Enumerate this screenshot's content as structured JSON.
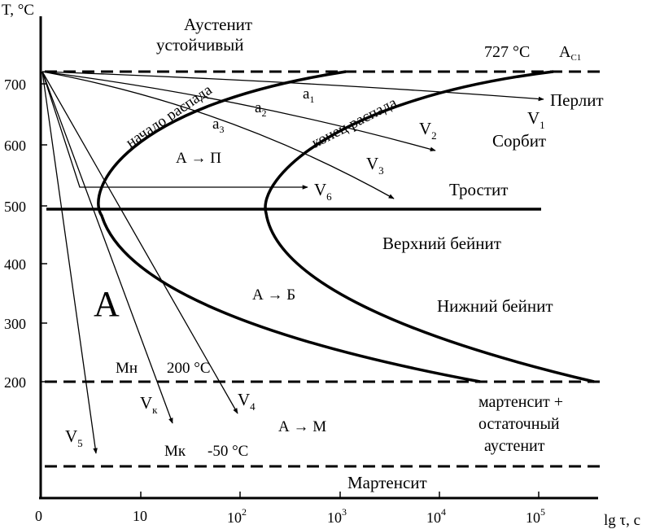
{
  "axes": {
    "y_title": "T, °C",
    "x_title": "lg τ, с",
    "y_ticks": [
      "700",
      "600",
      "500",
      "400",
      "300",
      "200"
    ],
    "x_ticks": [
      {
        "base": "0",
        "exp": ""
      },
      {
        "base": "10",
        "exp": ""
      },
      {
        "base": "10",
        "exp": "2"
      },
      {
        "base": "10",
        "exp": "3"
      },
      {
        "base": "10",
        "exp": "4"
      },
      {
        "base": "10",
        "exp": "5"
      }
    ]
  },
  "labels": {
    "austenite_stable_1": "Аустенит",
    "austenite_stable_2": "устойчивый",
    "temp_727": "727 °С",
    "ac1_main": "А",
    "ac1_sub": "С1",
    "start_decay": "начало распада",
    "end_decay": "конец распада",
    "a_to_p": "А → П",
    "a_to_b": "А → Б",
    "a_to_m": "А → М",
    "big_a": "А",
    "perlite": "Перлит",
    "sorbite": "Сорбит",
    "troostite": "Тростит",
    "upper_bainite": "Верхний бейнит",
    "lower_bainite": "Нижний бейнит",
    "mn": "Мн",
    "temp_200": "200 °С",
    "mk": "Мк",
    "temp_minus50": "-50 °С",
    "martensite_residual_1": "мартенсит +",
    "martensite_residual_2": "остаточный",
    "martensite_residual_3": "аустенит",
    "martensite": "Мартенсит"
  },
  "points_a": [
    {
      "base": "а",
      "sub": "1"
    },
    {
      "base": "а",
      "sub": "2"
    },
    {
      "base": "а",
      "sub": "3"
    }
  ],
  "rates": [
    {
      "base": "V",
      "sub": "1"
    },
    {
      "base": "V",
      "sub": "2"
    },
    {
      "base": "V",
      "sub": "3"
    },
    {
      "base": "V",
      "sub": "4"
    },
    {
      "base": "V",
      "sub": "5"
    },
    {
      "base": "V",
      "sub": "6"
    },
    {
      "base": "V",
      "sub": "к"
    }
  ]
}
